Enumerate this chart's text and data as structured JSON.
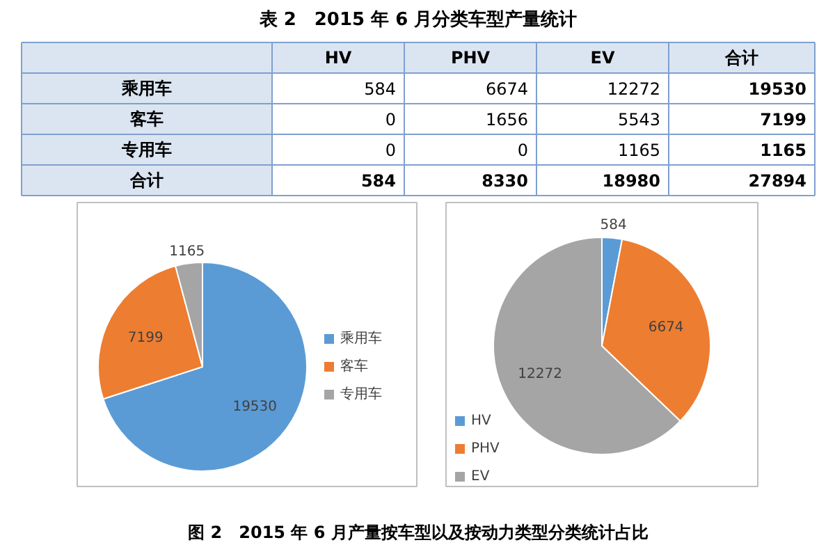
{
  "chart_data": [
    {
      "type": "other",
      "title": "表 2　2015 年 6 月分类车型产量统计",
      "categories": [
        null,
        "HV",
        "PHV",
        "EV",
        "合计"
      ],
      "y_categories": [
        "乘用车",
        "客车",
        "专用车",
        "合计"
      ],
      "cell_labels": [
        [
          "584",
          "6674",
          "12272",
          "19530"
        ],
        [
          "0",
          "1656",
          "5543",
          "7199"
        ],
        [
          "0",
          "0",
          "1165",
          "1165"
        ],
        [
          "584",
          "8330",
          "18980",
          "27894"
        ]
      ]
    },
    {
      "type": "pie",
      "categories": [
        "乘用车",
        "客车",
        "专用车"
      ],
      "values": [
        19530,
        7199,
        1165
      ],
      "colors": [
        "#5b9bd5",
        "#ed7d31",
        "#a5a5a5"
      ],
      "data_labels": true,
      "legend": "right"
    },
    {
      "type": "pie",
      "categories": [
        "HV",
        "PHV",
        "EV"
      ],
      "values": [
        584,
        6674,
        12272
      ],
      "colors": [
        "#5b9bd5",
        "#ed7d31",
        "#a5a5a5"
      ],
      "data_labels": true,
      "legend": "bottom left",
      "annotations": [
        "图 2　2015 年 6 月产量按车型以及按动力类型分类统计占比"
      ]
    }
  ]
}
